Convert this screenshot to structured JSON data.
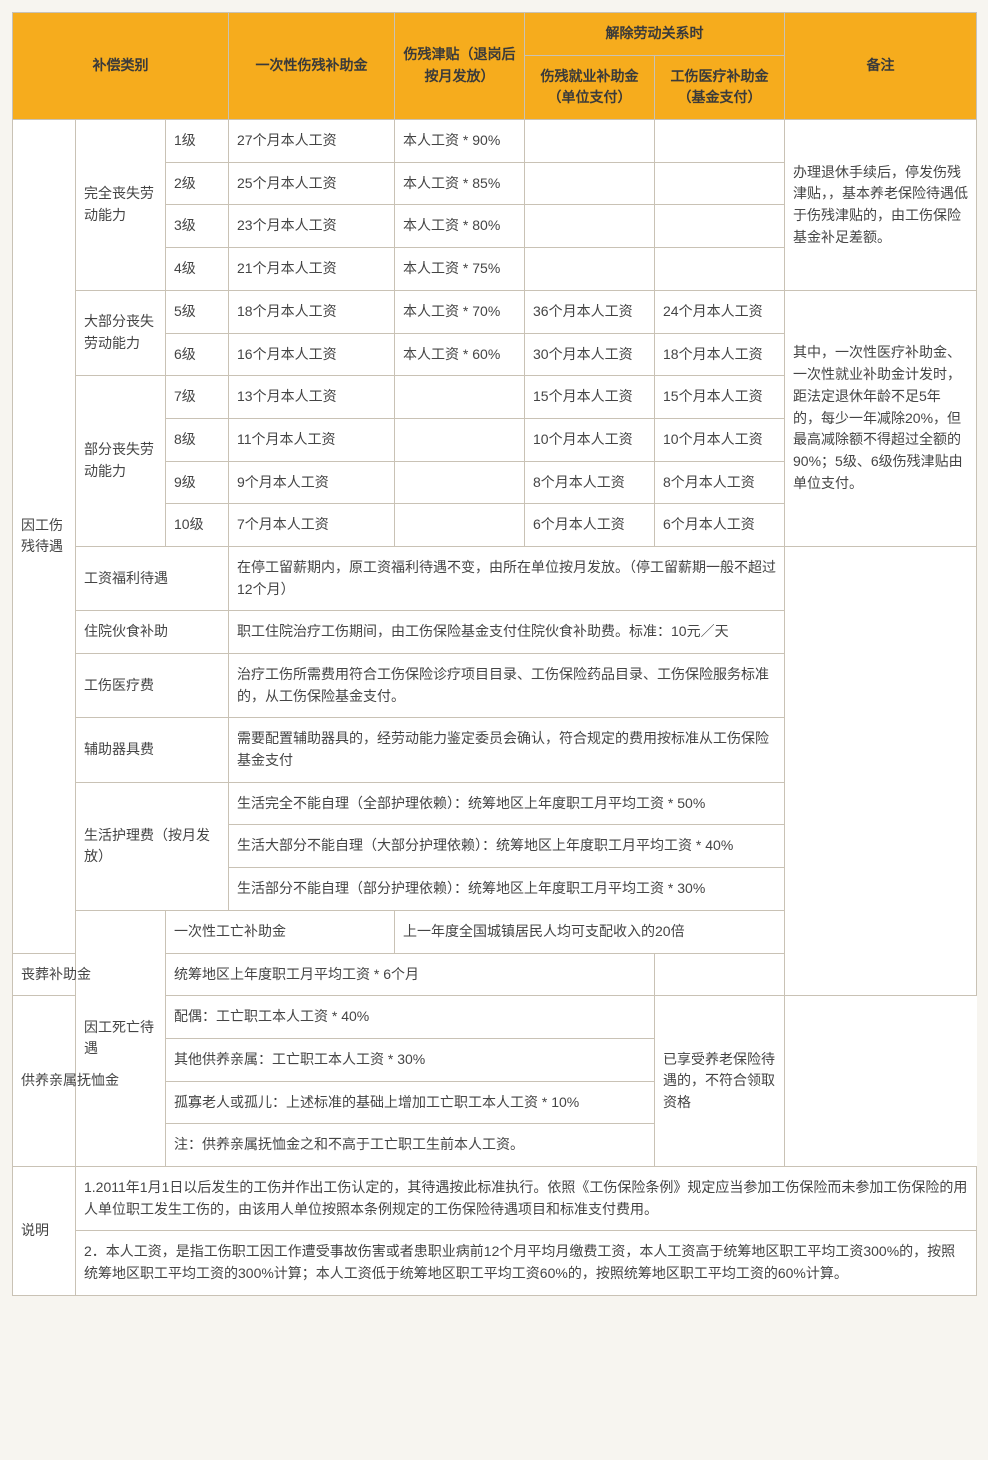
{
  "colors": {
    "header_bg": "#f6ac1d",
    "border": "#c9c2b5",
    "page_bg": "#f7f5f0",
    "text": "#444444"
  },
  "header": {
    "category": "补偿类别",
    "lumpsum": "一次性伤残补助金",
    "allowance": "伤残津贴（退岗后按月发放）",
    "termination": "解除劳动关系时",
    "term_emp": "伤残就业补助金（单位支付）",
    "term_med": "工伤医疗补助金（基金支付）",
    "remark": "备注"
  },
  "sec1_label": "因工伤残待遇",
  "g1_label": "完全丧失劳动能力",
  "g1": {
    "r1": {
      "lv": "1级",
      "lump": "27个月本人工资",
      "allow": "本人工资 * 90%"
    },
    "r2": {
      "lv": "2级",
      "lump": "25个月本人工资",
      "allow": "本人工资 * 85%"
    },
    "r3": {
      "lv": "3级",
      "lump": "23个月本人工资",
      "allow": "本人工资 * 80%"
    },
    "r4": {
      "lv": "4级",
      "lump": "21个月本人工资",
      "allow": "本人工资 * 75%"
    }
  },
  "g1_remark": "办理退休手续后，停发伤残津贴，，基本养老保险待遇低于伤残津贴的，由工伤保险基金补足差额。",
  "g2_label": "大部分丧失劳动能力",
  "g2": {
    "r5": {
      "lv": "5级",
      "lump": "18个月本人工资",
      "allow": "本人工资 * 70%",
      "emp": "36个月本人工资",
      "med": "24个月本人工资"
    },
    "r6": {
      "lv": "6级",
      "lump": "16个月本人工资",
      "allow": "本人工资 * 60%",
      "emp": "30个月本人工资",
      "med": "18个月本人工资"
    }
  },
  "g3_label": "部分丧失劳动能力",
  "g3": {
    "r7": {
      "lv": "7级",
      "lump": "13个月本人工资",
      "emp": "15个月本人工资",
      "med": "15个月本人工资"
    },
    "r8": {
      "lv": "8级",
      "lump": "11个月本人工资",
      "emp": "10个月本人工资",
      "med": "10个月本人工资"
    },
    "r9": {
      "lv": "9级",
      "lump": "9个月本人工资",
      "emp": "8个月本人工资",
      "med": "8个月本人工资"
    },
    "r10": {
      "lv": "10级",
      "lump": "7个月本人工资",
      "emp": "6个月本人工资",
      "med": "6个月本人工资"
    }
  },
  "g2g3_remark": "其中，一次性医疗补助金、一次性就业补助金计发时，距法定退休年龄不足5年的，每少一年减除20%，但最高减除额不得超过全额的90%；5级、6级伤残津贴由单位支付。",
  "items": {
    "wage_label": "工资福利待遇",
    "wage_text": "在停工留薪期内，原工资福利待遇不变，由所在单位按月发放。（停工留薪期一般不超过12个月）",
    "meal_label": "住院伙食补助",
    "meal_text": "职工住院治疗工伤期间，由工伤保险基金支付住院伙食补助费。标准：10元／天",
    "med_label": "工伤医疗费",
    "med_text": "治疗工伤所需费用符合工伤保险诊疗项目目录、工伤保险药品目录、工伤保险服务标准的，从工伤保险基金支付。",
    "aid_label": "辅助器具费",
    "aid_text": "需要配置辅助器具的，经劳动能力鉴定委员会确认，符合规定的费用按标准从工伤保险基金支付",
    "care_label": "生活护理费（按月发放）",
    "care1": "生活完全不能自理（全部护理依赖）：统筹地区上年度职工月平均工资 * 50%",
    "care2": "生活大部分不能自理（大部分护理依赖）：统筹地区上年度职工月平均工资 * 40%",
    "care3": "生活部分不能自理（部分护理依赖）：统筹地区上年度职工月平均工资 * 30%"
  },
  "sec2_label": "因工死亡待遇",
  "death": {
    "once_label": "一次性工亡补助金",
    "once_text": "上一年度全国城镇居民人均可支配收入的20倍",
    "funeral_label": "丧葬补助金",
    "funeral_text": "统筹地区上年度职工月平均工资 * 6个月",
    "dep_label": "供养亲属抚恤金",
    "dep1": "配偶：工亡职工本人工资 * 40%",
    "dep2": "其他供养亲属：工亡职工本人工资 * 30%",
    "dep3": "孤寡老人或孤儿：上述标准的基础上增加工亡职工本人工资 * 10%",
    "dep4": "注：供养亲属抚恤金之和不高于工亡职工生前本人工资。",
    "dep_remark": "已享受养老保险待遇的，不符合领取资格"
  },
  "notes_label": "说明",
  "notes": {
    "n1": "1.2011年1月1日以后发生的工伤并作出工伤认定的，其待遇按此标准执行。依照《工伤保险条例》规定应当参加工伤保险而未参加工伤保险的用人单位职工发生工伤的，由该用人单位按照本条例规定的工伤保险待遇项目和标准支付费用。",
    "n2": "2．本人工资，是指工伤职工因工作遭受事故伤害或者患职业病前12个月平均月缴费工资，本人工资高于统筹地区职工平均工资300%的，按照统筹地区职工平均工资的300%计算；本人工资低于统筹地区职工平均工资60%的，按照统筹地区职工平均工资的60%计算。"
  }
}
